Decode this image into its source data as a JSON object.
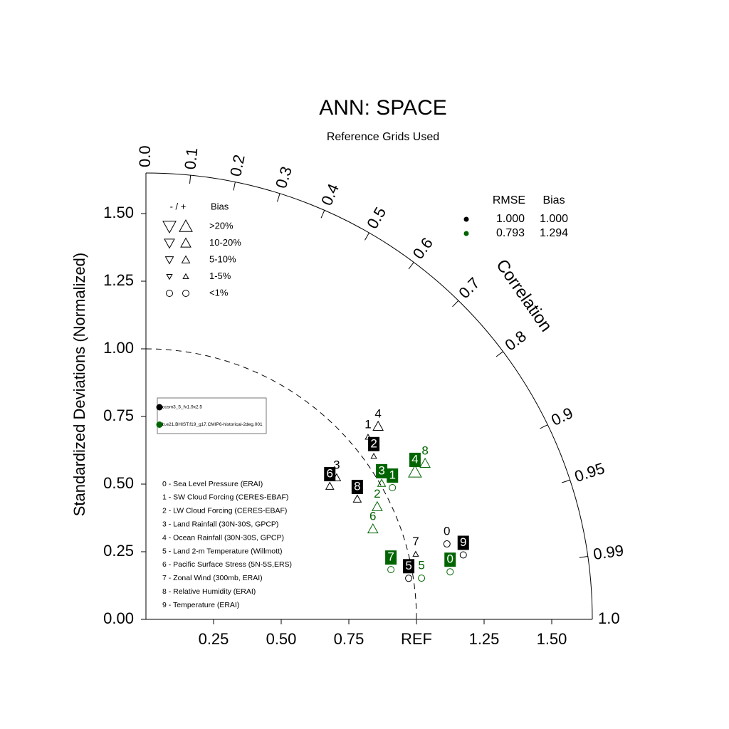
{
  "chart_data": {
    "type": "taylor",
    "title": "ANN: SPACE",
    "subtitle": "Reference Grids Used",
    "ylabel": "Standardized Deviations (Normalized)",
    "corr_label": "Correlation",
    "ylim": [
      0,
      1.65
    ],
    "yticks": [
      {
        "value": 0,
        "label": "0.00"
      },
      {
        "value": 0.25,
        "label": "0.25"
      },
      {
        "value": 0.5,
        "label": "0.50"
      },
      {
        "value": 0.75,
        "label": "0.75"
      },
      {
        "value": 1,
        "label": "1.00"
      },
      {
        "value": 1.25,
        "label": "1.25"
      },
      {
        "value": 1.5,
        "label": "1.50"
      }
    ],
    "xticks": [
      0.25,
      {
        "value": 0.5,
        "label": "0.50"
      },
      0.75,
      {
        "value": 1,
        "label": "REF"
      },
      1.25,
      {
        "value": 1.5,
        "label": "1.50"
      }
    ],
    "corr_ticks": [
      {
        "value": 0,
        "label": "0.0"
      },
      0.1,
      0.2,
      0.3,
      0.4,
      0.5,
      0.6,
      0.7,
      0.8,
      0.9,
      0.95,
      0.99,
      {
        "value": 1,
        "label": "1.0"
      }
    ],
    "ref_std": 1,
    "ids": [
      "0",
      "1",
      "2",
      "3",
      "4",
      "5",
      "6",
      "7",
      "8",
      "9"
    ],
    "variables": [
      "0 - Sea Level Pressure (ERAI)",
      "1 - SW Cloud Forcing (CERES-EBAF)",
      "2 - LW Cloud Forcing (CERES-EBAF)",
      "3 - Land Rainfall (30N-30S, GPCP)",
      "4 - Ocean Rainfall (30N-30S, GPCP)",
      "5 - Land 2-m Temperature (Willmott)",
      "6 - Pacific Surface Stress (5N-5S,ERS)",
      "7 - Zonal Wind (300mb, ERAI)",
      "8 - Relative Humidity (ERAI)",
      "9 - Temperature (ERAI)"
    ],
    "bias_header": [
      "- / +",
      "Bias"
    ],
    "bias_classes": [
      ">20%",
      "10-20%",
      "5-10%",
      "1-5%",
      "<1%"
    ],
    "stats_header": [
      "RMSE",
      "Bias"
    ],
    "series": [
      {
        "name": "ccsm3_5_fv1.9x2.5",
        "color": "#000000",
        "stats": [
          1.0,
          1.0
        ],
        "stats_labels": [
          "1.000",
          "1.000"
        ],
        "std": [
          1.147,
          1.062,
          1.036,
          0.878,
          1.116,
          0.983,
          0.839,
          1.026,
          0.899,
          1.197
        ],
        "corr": [
          0.97,
          0.773,
          0.813,
          0.803,
          0.769,
          0.988,
          0.81,
          0.972,
          0.869,
          0.98
        ],
        "marker": [
          "circle",
          "up",
          "up",
          "up",
          "up",
          "circle",
          "up",
          "up",
          "up",
          "circle"
        ],
        "bias_class": [
          4,
          3,
          3,
          2,
          1,
          4,
          2,
          3,
          2,
          4
        ],
        "boxed": [
          false,
          false,
          true,
          false,
          false,
          true,
          true,
          false,
          true,
          true
        ]
      },
      {
        "name": "b.e21.BHIST.f19_g17.CMIP6-historical-2deg.001",
        "color": "#006400",
        "stats": [
          0.793,
          1.294
        ],
        "stats_labels": [
          "0.793",
          "1.294"
        ],
        "std": [
          1.138,
          1.033,
          0.951,
          1.006,
          1.134,
          1.03,
          0.903,
          0.924,
          1.182,
          null
        ],
        "corr": [
          0.988,
          0.882,
          0.899,
          0.866,
          0.877,
          0.989,
          0.929,
          0.98,
          0.873,
          null
        ],
        "marker": [
          "circle",
          "circle",
          "up",
          "up",
          "up",
          "circle",
          "up",
          "circle",
          "up",
          null
        ],
        "bias_class": [
          4,
          4,
          1,
          2,
          0,
          4,
          1,
          4,
          1,
          null
        ],
        "boxed": [
          true,
          true,
          false,
          true,
          true,
          false,
          false,
          true,
          false,
          null
        ]
      }
    ]
  }
}
